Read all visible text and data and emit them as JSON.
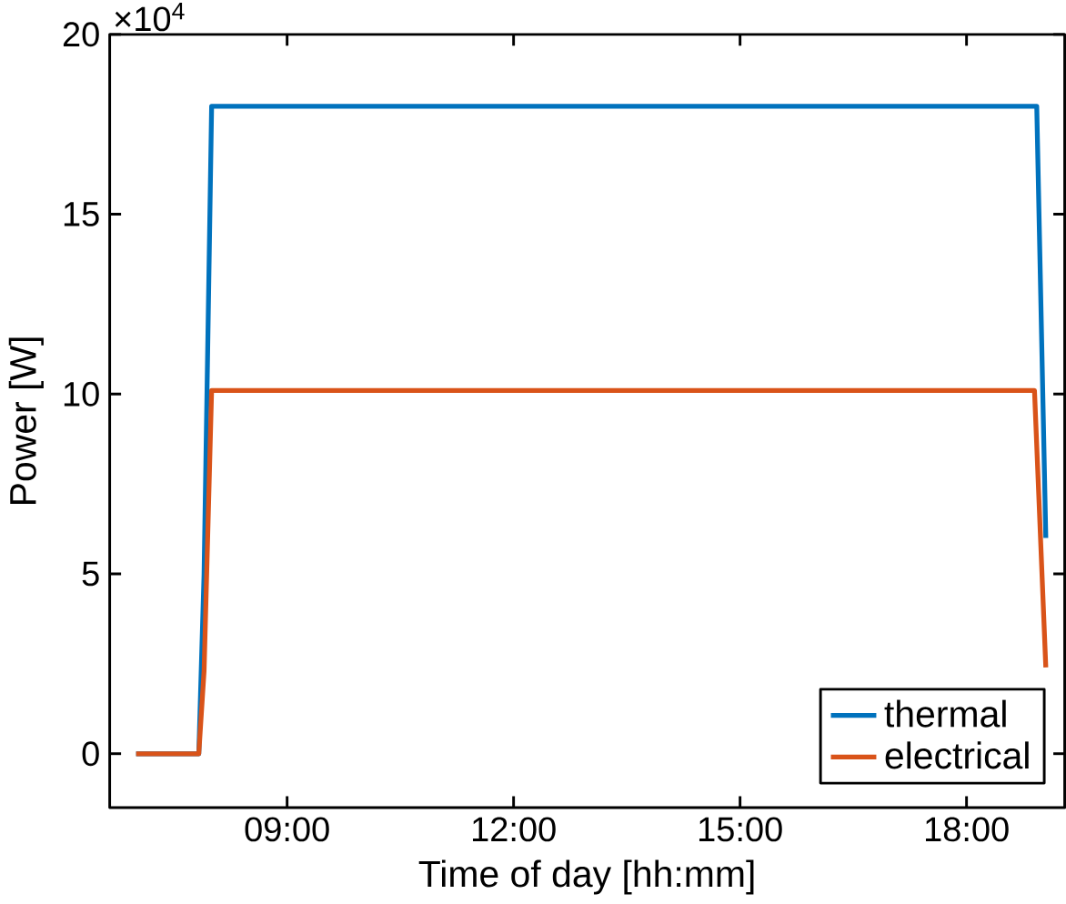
{
  "chart_data": {
    "type": "line",
    "xlabel": "Time of day [hh:mm]",
    "ylabel": "Power [W]",
    "annotations": [
      "×10$^{4}$"
    ],
    "xlim": [
      6.65,
      19.3
    ],
    "xticks": [
      {
        "value": 9,
        "label": "09:00"
      },
      {
        "value": 12,
        "label": "12:00"
      },
      {
        "value": 15,
        "label": "15:00"
      },
      {
        "value": 18,
        "label": "18:00"
      }
    ],
    "ylim": [
      -1.5,
      20
    ],
    "yticks": [
      0,
      5,
      10,
      15,
      20
    ],
    "grid": false,
    "legend": "bottom right",
    "marker": "none",
    "line_style": "solid",
    "series": [
      {
        "name": "thermal",
        "color": "#0072bd",
        "x": [
          7,
          7.83,
          7.9,
          8,
          18.93,
          19.05
        ],
        "values": [
          0,
          0,
          5,
          18,
          18,
          6
        ]
      },
      {
        "name": "electrical",
        "color": "#d95319",
        "x": [
          7,
          7.83,
          7.9,
          8,
          18.9,
          19.05
        ],
        "values": [
          0,
          0,
          2.3,
          10.1,
          10.1,
          2.4
        ]
      }
    ]
  }
}
